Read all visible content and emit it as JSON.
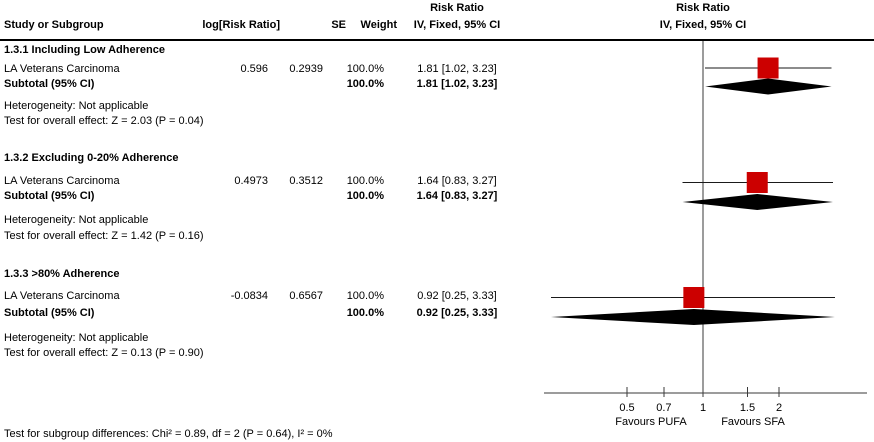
{
  "figure": {
    "columns": {
      "study": "Study or Subgroup",
      "log_rr": "log[Risk Ratio]",
      "se": "SE",
      "weight": "Weight",
      "effect_line1": "Risk Ratio",
      "effect_line2": "IV, Fixed, 95% CI",
      "plot_line1": "Risk Ratio",
      "plot_line2": "IV, Fixed, 95% CI"
    },
    "footer": "Test for subgroup differences: Chi² = 0.89, df = 2 (P = 0.64), I² = 0%"
  },
  "chart_data": {
    "type": "forest",
    "x_scale": "log",
    "null_value": 1,
    "axis_ticks": [
      0.5,
      0.7,
      1,
      1.5,
      2
    ],
    "axis_range": [
      0.23,
      4.5
    ],
    "favours_left": "Favours PUFA",
    "favours_right": "Favours SFA",
    "marker_color": "#CC0000",
    "diamond_color": "#000000",
    "groups": [
      {
        "title": "1.3.1 Including Low Adherence",
        "studies": [
          {
            "name": "LA Veterans Carcinoma",
            "log_rr": "0.596",
            "se": "0.2939",
            "weight": "100.0%",
            "rr_text": "1.81 [1.02, 3.23]",
            "est": 1.81,
            "lo": 1.02,
            "hi": 3.23
          }
        ],
        "subtotal": {
          "label": "Subtotal (95% CI)",
          "weight": "100.0%",
          "rr_text": "1.81 [1.02, 3.23]",
          "est": 1.81,
          "lo": 1.02,
          "hi": 3.23
        },
        "heterogeneity": "Heterogeneity: Not applicable",
        "overall_test": "Test for overall effect: Z = 2.03 (P = 0.04)"
      },
      {
        "title": "1.3.2 Excluding 0-20% Adherence",
        "studies": [
          {
            "name": "LA Veterans Carcinoma",
            "log_rr": "0.4973",
            "se": "0.3512",
            "weight": "100.0%",
            "rr_text": "1.64 [0.83, 3.27]",
            "est": 1.64,
            "lo": 0.83,
            "hi": 3.27
          }
        ],
        "subtotal": {
          "label": "Subtotal (95% CI)",
          "weight": "100.0%",
          "rr_text": "1.64 [0.83, 3.27]",
          "est": 1.64,
          "lo": 0.83,
          "hi": 3.27
        },
        "heterogeneity": "Heterogeneity: Not applicable",
        "overall_test": "Test for overall effect: Z = 1.42 (P = 0.16)"
      },
      {
        "title": "1.3.3 >80% Adherence",
        "studies": [
          {
            "name": "LA Veterans Carcinoma",
            "log_rr": "-0.0834",
            "se": "0.6567",
            "weight": "100.0%",
            "rr_text": "0.92 [0.25, 3.33]",
            "est": 0.92,
            "lo": 0.25,
            "hi": 3.33
          }
        ],
        "subtotal": {
          "label": "Subtotal (95% CI)",
          "weight": "100.0%",
          "rr_text": "0.92 [0.25, 3.33]",
          "est": 0.92,
          "lo": 0.25,
          "hi": 3.33
        },
        "heterogeneity": "Heterogeneity: Not applicable",
        "overall_test": "Test for overall effect: Z = 0.13 (P = 0.90)"
      }
    ]
  }
}
